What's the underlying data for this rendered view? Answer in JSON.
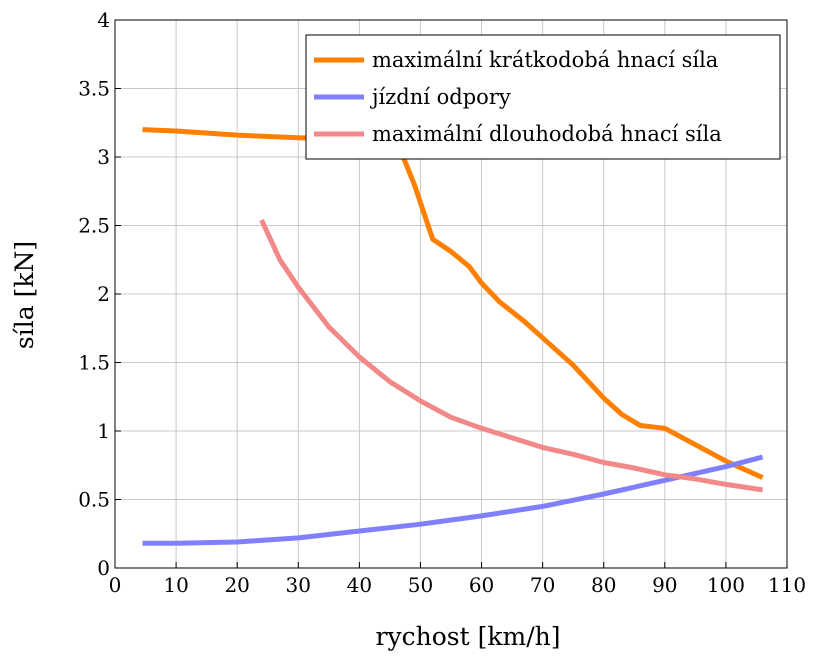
{
  "chart_data": {
    "type": "line",
    "xlabel": "rychost [km/h]",
    "ylabel": "síla [kN]",
    "xlim": [
      0,
      110
    ],
    "ylim": [
      0,
      4
    ],
    "x_ticks": [
      0,
      10,
      20,
      30,
      40,
      50,
      60,
      70,
      80,
      90,
      100,
      110
    ],
    "y_ticks": [
      0,
      0.5,
      1,
      1.5,
      2,
      2.5,
      3,
      3.5,
      4
    ],
    "x_tick_labels": [
      "0",
      "10",
      "20",
      "30",
      "40",
      "50",
      "60",
      "70",
      "80",
      "90",
      "100",
      "110"
    ],
    "y_tick_labels": [
      "0",
      "0.5",
      "1",
      "1.5",
      "2",
      "2.5",
      "3",
      "3.5",
      "4"
    ],
    "grid": true,
    "legend_position": "top-right",
    "series": [
      {
        "name": "maximální krátkodobá hnací síla",
        "color": "#ff8000",
        "points": [
          [
            4.5,
            3.2
          ],
          [
            10,
            3.19
          ],
          [
            20,
            3.16
          ],
          [
            30,
            3.14
          ],
          [
            40,
            3.13
          ],
          [
            44,
            3.14
          ],
          [
            47,
            3.02
          ],
          [
            49,
            2.8
          ],
          [
            52,
            2.4
          ],
          [
            55,
            2.31
          ],
          [
            58,
            2.2
          ],
          [
            60,
            2.08
          ],
          [
            63,
            1.94
          ],
          [
            67,
            1.8
          ],
          [
            70,
            1.68
          ],
          [
            75,
            1.48
          ],
          [
            80,
            1.24
          ],
          [
            83,
            1.12
          ],
          [
            86,
            1.04
          ],
          [
            90,
            1.02
          ],
          [
            95,
            0.9
          ],
          [
            100,
            0.78
          ],
          [
            106,
            0.66
          ]
        ]
      },
      {
        "name": "jízdní odpory",
        "color": "#8080ff",
        "points": [
          [
            4.5,
            0.18
          ],
          [
            10,
            0.18
          ],
          [
            20,
            0.19
          ],
          [
            30,
            0.22
          ],
          [
            40,
            0.27
          ],
          [
            50,
            0.32
          ],
          [
            60,
            0.38
          ],
          [
            70,
            0.45
          ],
          [
            80,
            0.54
          ],
          [
            90,
            0.64
          ],
          [
            100,
            0.74
          ],
          [
            106,
            0.81
          ]
        ]
      },
      {
        "name": "maximální dlouhodobá hnací síla",
        "color": "#f28888",
        "points": [
          [
            24,
            2.54
          ],
          [
            27,
            2.25
          ],
          [
            30,
            2.05
          ],
          [
            35,
            1.76
          ],
          [
            40,
            1.54
          ],
          [
            45,
            1.36
          ],
          [
            50,
            1.22
          ],
          [
            55,
            1.1
          ],
          [
            60,
            1.02
          ],
          [
            65,
            0.95
          ],
          [
            70,
            0.88
          ],
          [
            75,
            0.83
          ],
          [
            80,
            0.77
          ],
          [
            85,
            0.73
          ],
          [
            90,
            0.68
          ],
          [
            95,
            0.65
          ],
          [
            100,
            0.61
          ],
          [
            106,
            0.57
          ]
        ]
      }
    ]
  }
}
